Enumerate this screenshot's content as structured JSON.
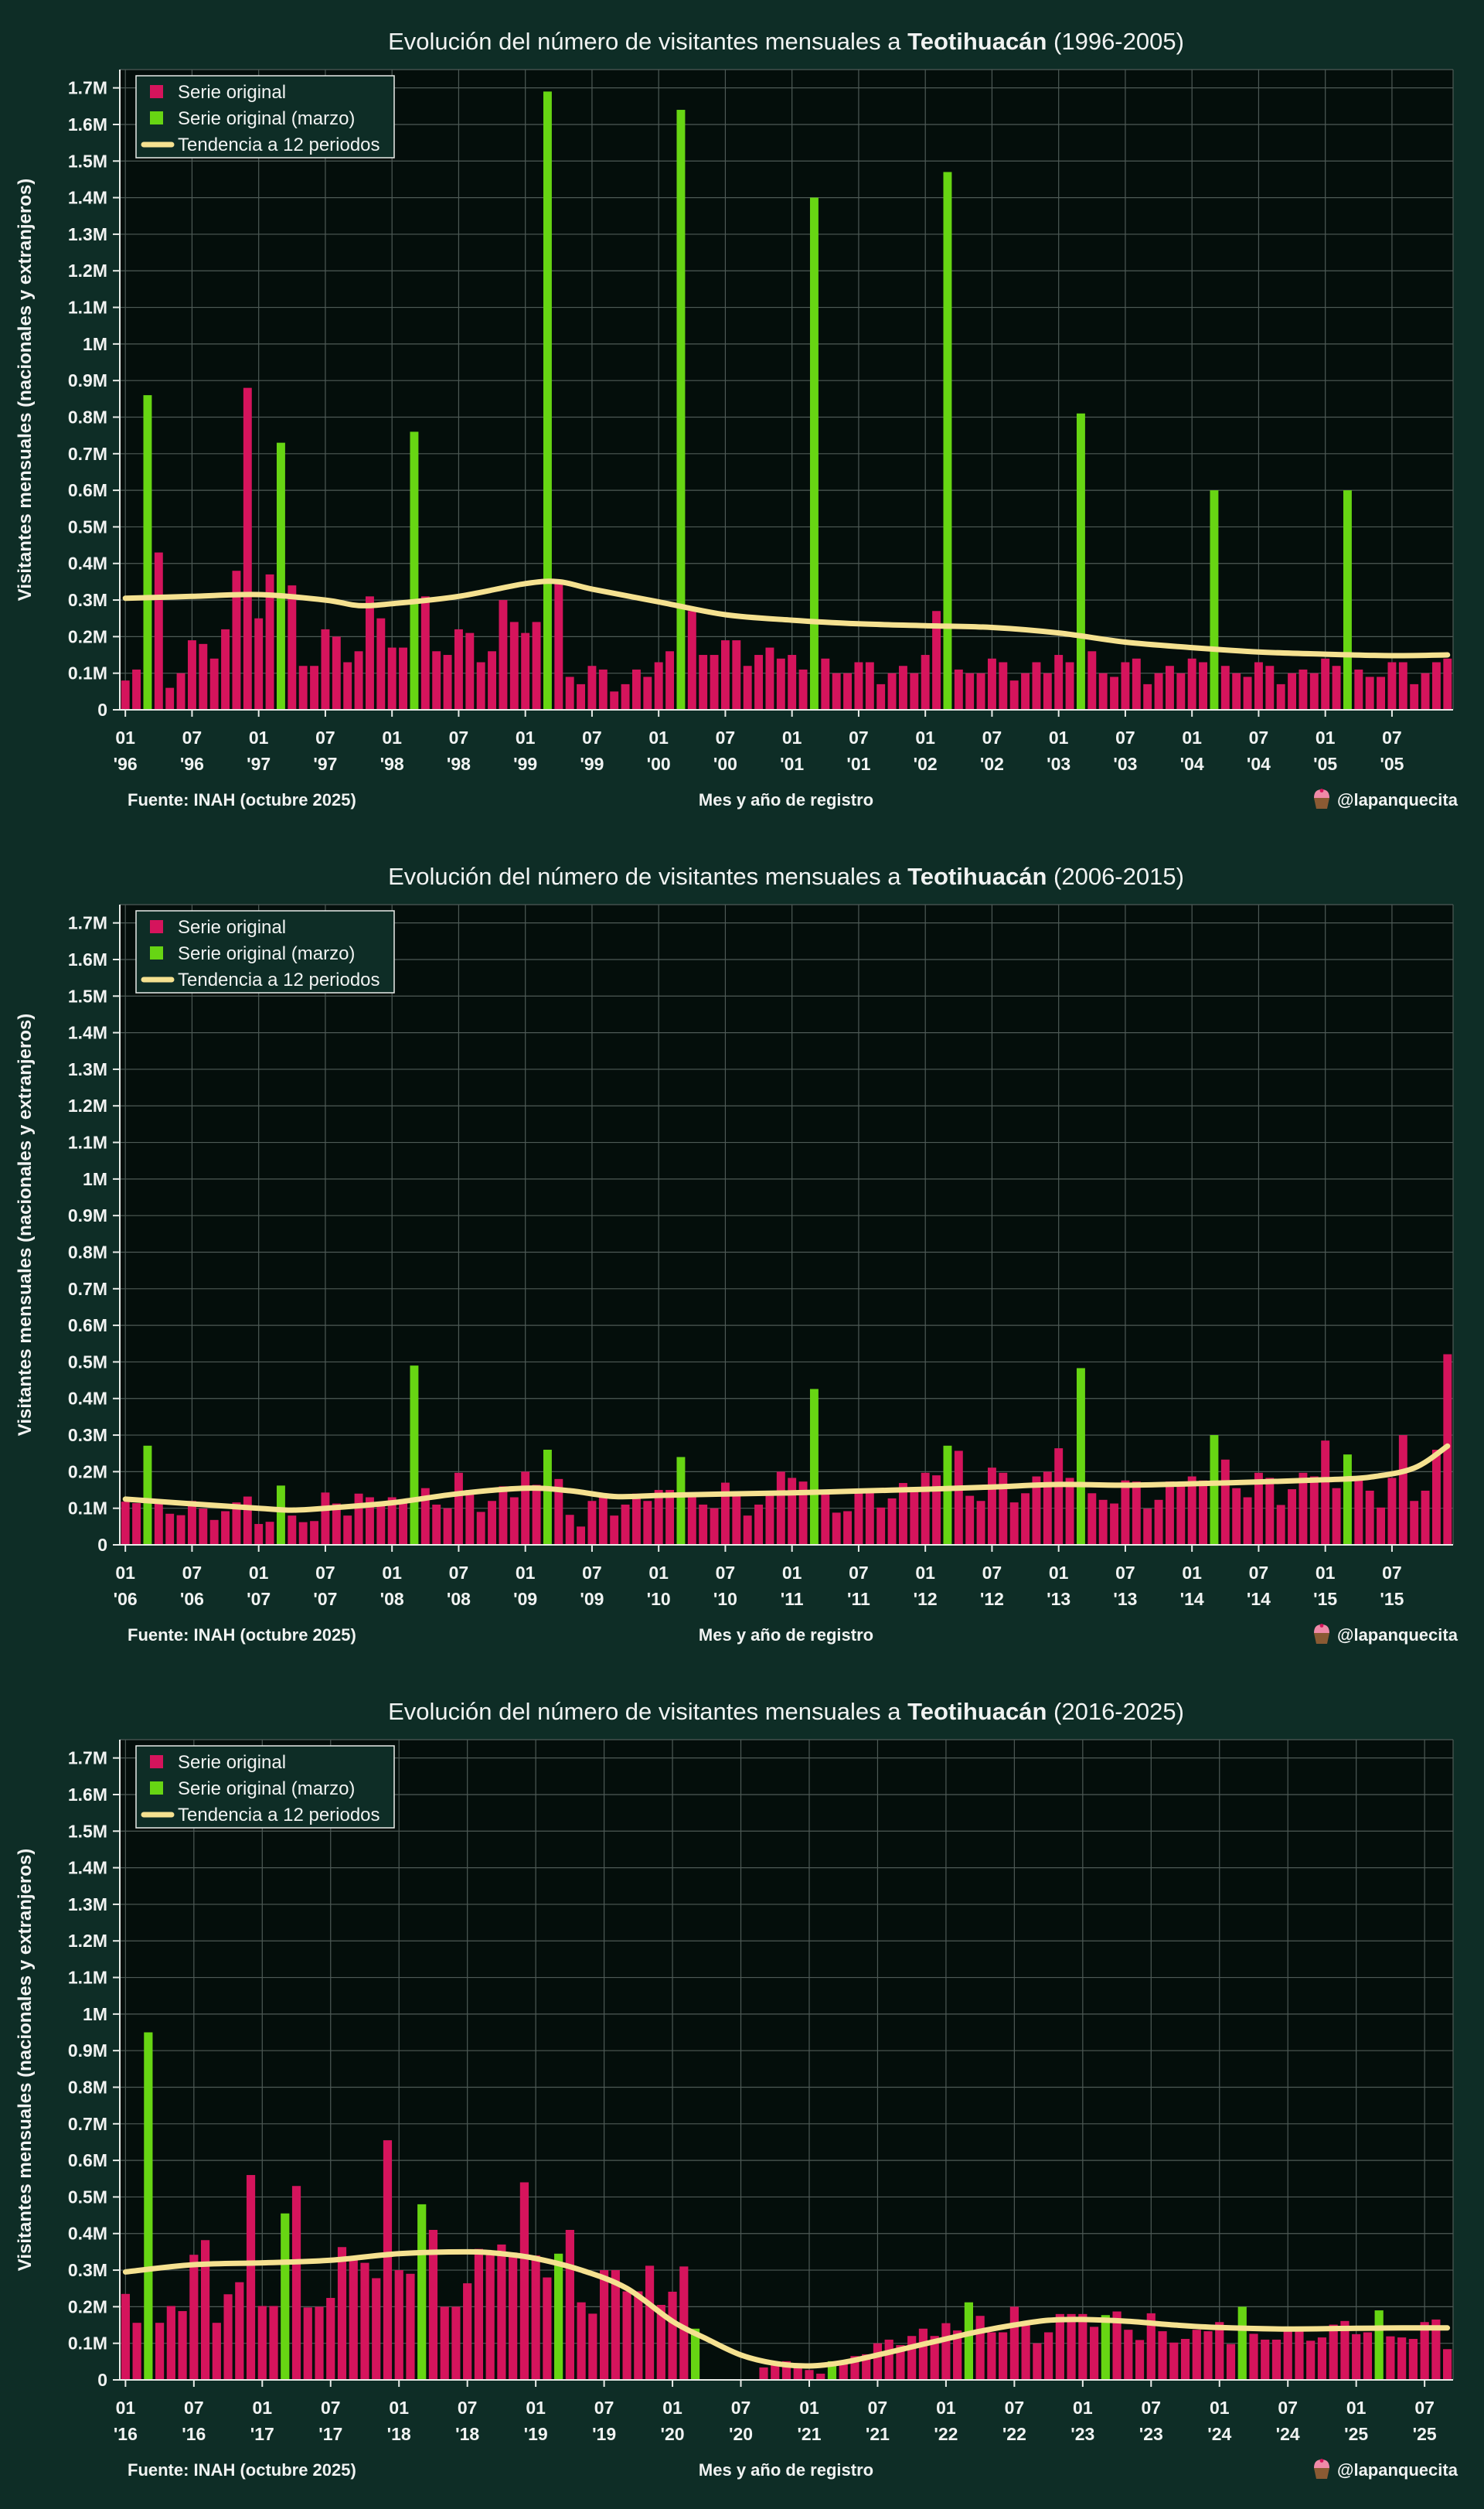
{
  "page": {
    "background_color": "#0e2d26",
    "plot_background_color": "#040e0b",
    "grid_color": "#4e5a56",
    "spine_color": "#e9ece9",
    "text_color": "#f1f3f2"
  },
  "colors": {
    "series_original": "#d5145c",
    "series_march": "#67d513",
    "trend_line": "#f5e190"
  },
  "chart_data": [
    {
      "type": "bar",
      "title_prefix": "Evolución del número de visitantes mensuales a ",
      "title_bold": "Teotihuacán",
      "title_suffix": " (1996-2005)",
      "ylabel": "Visitantes mensuales (nacionales y extranjeros)",
      "xlabel": "Mes y año de registro",
      "source": "Fuente: INAH (octubre 2025)",
      "credit": "@lapanquecita",
      "credit_icon": "cupcake-emoji",
      "legend": [
        "Serie original",
        "Serie original (marzo)",
        "Tendencia a 12 periodos"
      ],
      "start_year": 1996,
      "unit": "millions of visitors",
      "ylim": [
        0,
        1.75
      ],
      "y_tick_step": 0.1,
      "y_tick_max": 1.7,
      "march_is_green": true,
      "values_millions": [
        0.08,
        0.11,
        0.86,
        0.43,
        0.06,
        0.1,
        0.19,
        0.18,
        0.14,
        0.22,
        0.38,
        0.88,
        0.25,
        0.37,
        0.73,
        0.34,
        0.12,
        0.12,
        0.22,
        0.2,
        0.13,
        0.16,
        0.31,
        0.25,
        0.17,
        0.17,
        0.76,
        0.31,
        0.16,
        0.15,
        0.22,
        0.21,
        0.13,
        0.16,
        0.3,
        0.24,
        0.21,
        0.24,
        1.69,
        0.35,
        0.09,
        0.07,
        0.12,
        0.11,
        0.05,
        0.07,
        0.11,
        0.09,
        0.13,
        0.16,
        1.64,
        0.27,
        0.15,
        0.15,
        0.19,
        0.19,
        0.12,
        0.15,
        0.17,
        0.14,
        0.15,
        0.11,
        1.4,
        0.14,
        0.1,
        0.1,
        0.13,
        0.13,
        0.07,
        0.1,
        0.12,
        0.1,
        0.15,
        0.27,
        1.47,
        0.11,
        0.1,
        0.1,
        0.14,
        0.13,
        0.08,
        0.1,
        0.13,
        0.1,
        0.15,
        0.13,
        0.81,
        0.16,
        0.1,
        0.09,
        0.13,
        0.14,
        0.07,
        0.1,
        0.12,
        0.1,
        0.14,
        0.13,
        0.6,
        0.12,
        0.1,
        0.09,
        0.13,
        0.12,
        0.07,
        0.1,
        0.11,
        0.1,
        0.14,
        0.12,
        0.6,
        0.11,
        0.09,
        0.09,
        0.13,
        0.13,
        0.07,
        0.1,
        0.13,
        0.14
      ],
      "trend_points": [
        [
          0,
          0.305
        ],
        [
          6,
          0.31
        ],
        [
          12,
          0.315
        ],
        [
          18,
          0.3
        ],
        [
          21,
          0.285
        ],
        [
          24,
          0.29
        ],
        [
          30,
          0.31
        ],
        [
          36,
          0.345
        ],
        [
          39,
          0.35
        ],
        [
          42,
          0.33
        ],
        [
          48,
          0.295
        ],
        [
          54,
          0.26
        ],
        [
          60,
          0.245
        ],
        [
          66,
          0.235
        ],
        [
          72,
          0.23
        ],
        [
          78,
          0.225
        ],
        [
          84,
          0.21
        ],
        [
          90,
          0.185
        ],
        [
          96,
          0.17
        ],
        [
          102,
          0.158
        ],
        [
          108,
          0.152
        ],
        [
          114,
          0.148
        ],
        [
          119,
          0.15
        ]
      ]
    },
    {
      "type": "bar",
      "title_prefix": "Evolución del número de visitantes mensuales a ",
      "title_bold": "Teotihuacán",
      "title_suffix": " (2006-2015)",
      "ylabel": "Visitantes mensuales (nacionales y extranjeros)",
      "xlabel": "Mes y año de registro",
      "source": "Fuente: INAH (octubre 2025)",
      "credit": "@lapanquecita",
      "credit_icon": "cupcake-emoji",
      "legend": [
        "Serie original",
        "Serie original (marzo)",
        "Tendencia a 12 periodos"
      ],
      "start_year": 2006,
      "unit": "millions of visitors",
      "ylim": [
        0,
        1.75
      ],
      "y_tick_step": 0.1,
      "y_tick_max": 1.7,
      "march_is_green": true,
      "values_millions": [
        0.118,
        0.114,
        0.271,
        0.113,
        0.085,
        0.081,
        0.12,
        0.099,
        0.068,
        0.092,
        0.116,
        0.132,
        0.057,
        0.063,
        0.162,
        0.08,
        0.062,
        0.065,
        0.143,
        0.113,
        0.08,
        0.14,
        0.13,
        0.11,
        0.13,
        0.125,
        0.49,
        0.155,
        0.11,
        0.1,
        0.197,
        0.15,
        0.09,
        0.12,
        0.16,
        0.13,
        0.2,
        0.164,
        0.26,
        0.18,
        0.082,
        0.05,
        0.12,
        0.13,
        0.08,
        0.11,
        0.14,
        0.12,
        0.15,
        0.15,
        0.24,
        0.13,
        0.11,
        0.1,
        0.17,
        0.145,
        0.08,
        0.11,
        0.145,
        0.2,
        0.183,
        0.173,
        0.426,
        0.141,
        0.088,
        0.092,
        0.152,
        0.148,
        0.102,
        0.127,
        0.169,
        0.155,
        0.197,
        0.19,
        0.271,
        0.257,
        0.134,
        0.12,
        0.211,
        0.197,
        0.116,
        0.141,
        0.187,
        0.2,
        0.264,
        0.183,
        0.483,
        0.141,
        0.123,
        0.113,
        0.176,
        0.173,
        0.099,
        0.123,
        0.173,
        0.162,
        0.187,
        0.176,
        0.3,
        0.233,
        0.155,
        0.13,
        0.197,
        0.183,
        0.109,
        0.152,
        0.197,
        0.187,
        0.285,
        0.155,
        0.247,
        0.187,
        0.148,
        0.102,
        0.183,
        0.3,
        0.12,
        0.148,
        0.26,
        0.521
      ],
      "trend_points": [
        [
          0,
          0.125
        ],
        [
          6,
          0.112
        ],
        [
          12,
          0.1
        ],
        [
          15,
          0.095
        ],
        [
          18,
          0.1
        ],
        [
          24,
          0.115
        ],
        [
          30,
          0.14
        ],
        [
          36,
          0.155
        ],
        [
          40,
          0.148
        ],
        [
          44,
          0.132
        ],
        [
          48,
          0.135
        ],
        [
          54,
          0.139
        ],
        [
          60,
          0.142
        ],
        [
          66,
          0.147
        ],
        [
          72,
          0.152
        ],
        [
          78,
          0.158
        ],
        [
          84,
          0.165
        ],
        [
          90,
          0.163
        ],
        [
          96,
          0.167
        ],
        [
          102,
          0.172
        ],
        [
          108,
          0.178
        ],
        [
          112,
          0.185
        ],
        [
          116,
          0.21
        ],
        [
          119,
          0.27
        ]
      ]
    },
    {
      "type": "bar",
      "title_prefix": "Evolución del número de visitantes mensuales a ",
      "title_bold": "Teotihuacán",
      "title_suffix": " (2016-2025)",
      "ylabel": "Visitantes mensuales (nacionales y extranjeros)",
      "xlabel": "Mes y año de registro",
      "source": "Fuente: INAH (octubre 2025)",
      "credit": "@lapanquecita",
      "credit_icon": "cupcake-emoji",
      "legend": [
        "Serie original",
        "Serie original (marzo)",
        "Tendencia a 12 periodos"
      ],
      "start_year": 2016,
      "unit": "millions of visitors",
      "ylim": [
        0,
        1.75
      ],
      "y_tick_step": 0.1,
      "y_tick_max": 1.7,
      "march_is_green": true,
      "values_millions": [
        0.235,
        0.156,
        0.95,
        0.156,
        0.202,
        0.188,
        0.342,
        0.382,
        0.156,
        0.234,
        0.267,
        0.56,
        0.202,
        0.202,
        0.455,
        0.53,
        0.198,
        0.2,
        0.224,
        0.363,
        0.337,
        0.32,
        0.278,
        0.655,
        0.3,
        0.29,
        0.48,
        0.41,
        0.2,
        0.2,
        0.264,
        0.358,
        0.345,
        0.37,
        0.348,
        0.54,
        0.34,
        0.28,
        0.345,
        0.41,
        0.212,
        0.181,
        0.3,
        0.3,
        0.242,
        0.242,
        0.312,
        0.205,
        0.241,
        0.31,
        0.14,
        0,
        0,
        0,
        0,
        0,
        0.034,
        0.044,
        0.051,
        0.034,
        0.027,
        0.017,
        0.051,
        0.051,
        0.065,
        0.07,
        0.1,
        0.11,
        0.095,
        0.12,
        0.14,
        0.12,
        0.155,
        0.135,
        0.212,
        0.175,
        0.13,
        0.13,
        0.2,
        0.154,
        0.1,
        0.13,
        0.18,
        0.18,
        0.18,
        0.145,
        0.177,
        0.187,
        0.137,
        0.109,
        0.182,
        0.133,
        0.102,
        0.112,
        0.137,
        0.133,
        0.158,
        0.098,
        0.2,
        0.126,
        0.11,
        0.11,
        0.144,
        0.14,
        0.107,
        0.116,
        0.151,
        0.161,
        0.125,
        0.13,
        0.19,
        0.119,
        0.116,
        0.112,
        0.158,
        0.165,
        0.084
      ],
      "trend_points": [
        [
          0,
          0.295
        ],
        [
          6,
          0.315
        ],
        [
          12,
          0.32
        ],
        [
          18,
          0.327
        ],
        [
          24,
          0.345
        ],
        [
          30,
          0.35
        ],
        [
          33,
          0.345
        ],
        [
          36,
          0.332
        ],
        [
          40,
          0.3
        ],
        [
          44,
          0.25
        ],
        [
          48,
          0.16
        ],
        [
          51,
          0.112
        ],
        [
          54,
          0.068
        ],
        [
          57,
          0.045
        ],
        [
          60,
          0.038
        ],
        [
          63,
          0.048
        ],
        [
          66,
          0.068
        ],
        [
          69,
          0.09
        ],
        [
          72,
          0.112
        ],
        [
          75,
          0.133
        ],
        [
          78,
          0.15
        ],
        [
          81,
          0.163
        ],
        [
          84,
          0.165
        ],
        [
          88,
          0.16
        ],
        [
          92,
          0.15
        ],
        [
          96,
          0.143
        ],
        [
          102,
          0.139
        ],
        [
          108,
          0.141
        ],
        [
          112,
          0.142
        ],
        [
          116,
          0.142
        ]
      ]
    }
  ]
}
